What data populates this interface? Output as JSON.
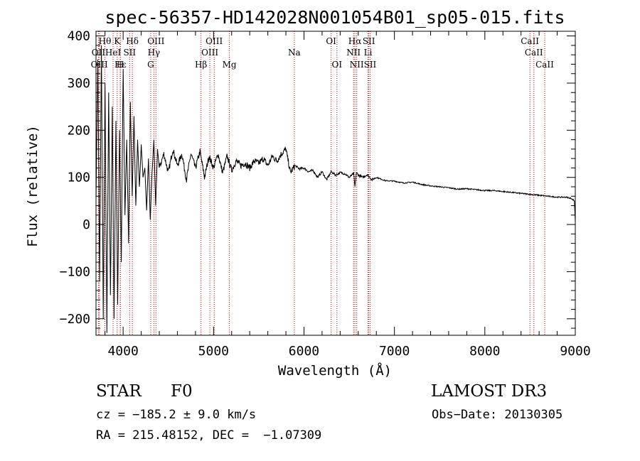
{
  "chart_data": {
    "type": "line",
    "title": "spec-56357-HD142028N001054B01_sp05-015.fits",
    "xlabel": "Wavelength (Å)",
    "ylabel": "Flux (relative)",
    "xlim": [
      3700,
      9000
    ],
    "ylim": [
      -235,
      410
    ],
    "x_ticks": [
      4000,
      5000,
      6000,
      7000,
      8000,
      9000
    ],
    "y_ticks": [
      -200,
      -100,
      0,
      100,
      200,
      300,
      400
    ],
    "series": [
      {
        "name": "spectrum",
        "x": [
          3700,
          3720,
          3740,
          3760,
          3780,
          3800,
          3820,
          3840,
          3860,
          3880,
          3900,
          3920,
          3940,
          3960,
          3980,
          4000,
          4020,
          4040,
          4060,
          4080,
          4100,
          4120,
          4140,
          4160,
          4180,
          4200,
          4220,
          4240,
          4260,
          4280,
          4300,
          4320,
          4340,
          4360,
          4380,
          4400,
          4450,
          4500,
          4550,
          4600,
          4650,
          4700,
          4750,
          4800,
          4850,
          4900,
          4950,
          5000,
          5050,
          5100,
          5150,
          5200,
          5250,
          5300,
          5350,
          5400,
          5450,
          5500,
          5550,
          5600,
          5650,
          5700,
          5750,
          5800,
          5850,
          5900,
          5950,
          6000,
          6050,
          6100,
          6150,
          6200,
          6250,
          6300,
          6350,
          6400,
          6450,
          6500,
          6550,
          6563,
          6580,
          6600,
          6650,
          6700,
          6750,
          6800,
          6900,
          7000,
          7100,
          7200,
          7300,
          7400,
          7500,
          7600,
          7700,
          7800,
          7900,
          8000,
          8100,
          8200,
          8300,
          8400,
          8500,
          8600,
          8700,
          8800,
          8900,
          8960,
          8990,
          9000
        ],
        "y": [
          50,
          350,
          -120,
          380,
          -200,
          300,
          -230,
          280,
          -150,
          250,
          -200,
          220,
          -170,
          200,
          -80,
          330,
          20,
          180,
          -40,
          260,
          60,
          230,
          40,
          180,
          80,
          170,
          100,
          120,
          30,
          140,
          10,
          110,
          180,
          40,
          160,
          120,
          150,
          110,
          160,
          125,
          150,
          95,
          150,
          120,
          155,
          100,
          145,
          120,
          150,
          110,
          145,
          115,
          135,
          125,
          130,
          120,
          135,
          130,
          140,
          125,
          145,
          135,
          150,
          160,
          110,
          125,
          118,
          120,
          112,
          115,
          100,
          112,
          95,
          112,
          105,
          110,
          108,
          100,
          108,
          80,
          110,
          105,
          100,
          106,
          95,
          100,
          93,
          92,
          88,
          90,
          85,
          82,
          80,
          78,
          75,
          76,
          74,
          72,
          72,
          70,
          68,
          66,
          64,
          62,
          60,
          58,
          58,
          55,
          50,
          5
        ]
      }
    ],
    "line_markers": [
      {
        "label": "Hθ",
        "x": 3798,
        "row": 1
      },
      {
        "label": "K",
        "x": 3934,
        "row": 1
      },
      {
        "label": "Hδ",
        "x": 4102,
        "row": 1
      },
      {
        "label": "OIII",
        "x": 4363,
        "row": 1
      },
      {
        "label": "OIII",
        "x": 5007,
        "row": 1
      },
      {
        "label": "OI",
        "x": 6300,
        "row": 1
      },
      {
        "label": "Hα",
        "x": 6563,
        "row": 1
      },
      {
        "label": "SII",
        "x": 6717,
        "row": 1
      },
      {
        "label": "CaII",
        "x": 8498,
        "row": 1
      },
      {
        "label": "OII",
        "x": 3727,
        "row": 2
      },
      {
        "label": "HeI",
        "x": 3889,
        "row": 2
      },
      {
        "label": "SII",
        "x": 4072,
        "row": 2
      },
      {
        "label": "Hγ",
        "x": 4340,
        "row": 2
      },
      {
        "label": "OIII",
        "x": 4959,
        "row": 2
      },
      {
        "label": "Na",
        "x": 5893,
        "row": 2
      },
      {
        "label": "NII",
        "x": 6548,
        "row": 2
      },
      {
        "label": "Li",
        "x": 6708,
        "row": 2
      },
      {
        "label": "CaII",
        "x": 8542,
        "row": 2
      },
      {
        "label": "OIII",
        "x": 3737,
        "row": 3
      },
      {
        "label": "Hε",
        "x": 3970,
        "row": 3
      },
      {
        "label": "H",
        "x": 3968,
        "row": 3
      },
      {
        "label": "G",
        "x": 4305,
        "row": 3
      },
      {
        "label": "Hβ",
        "x": 4861,
        "row": 3
      },
      {
        "label": "Mg",
        "x": 5175,
        "row": 3
      },
      {
        "label": "OI",
        "x": 6364,
        "row": 3
      },
      {
        "label": "NII",
        "x": 6583,
        "row": 3
      },
      {
        "label": "SII",
        "x": 6731,
        "row": 3
      },
      {
        "label": "CaII",
        "x": 8662,
        "row": 3
      }
    ],
    "marker_color": "#cc0000"
  },
  "footer": {
    "object_class": "STAR",
    "subclass": "F0",
    "survey": "LAMOST DR3",
    "cz": "cz = −185.2 ± 9.0 km/s",
    "obs_date": "Obs−Date: 20130305",
    "coords": "RA = 215.48152, DEC =  −1.07309"
  }
}
